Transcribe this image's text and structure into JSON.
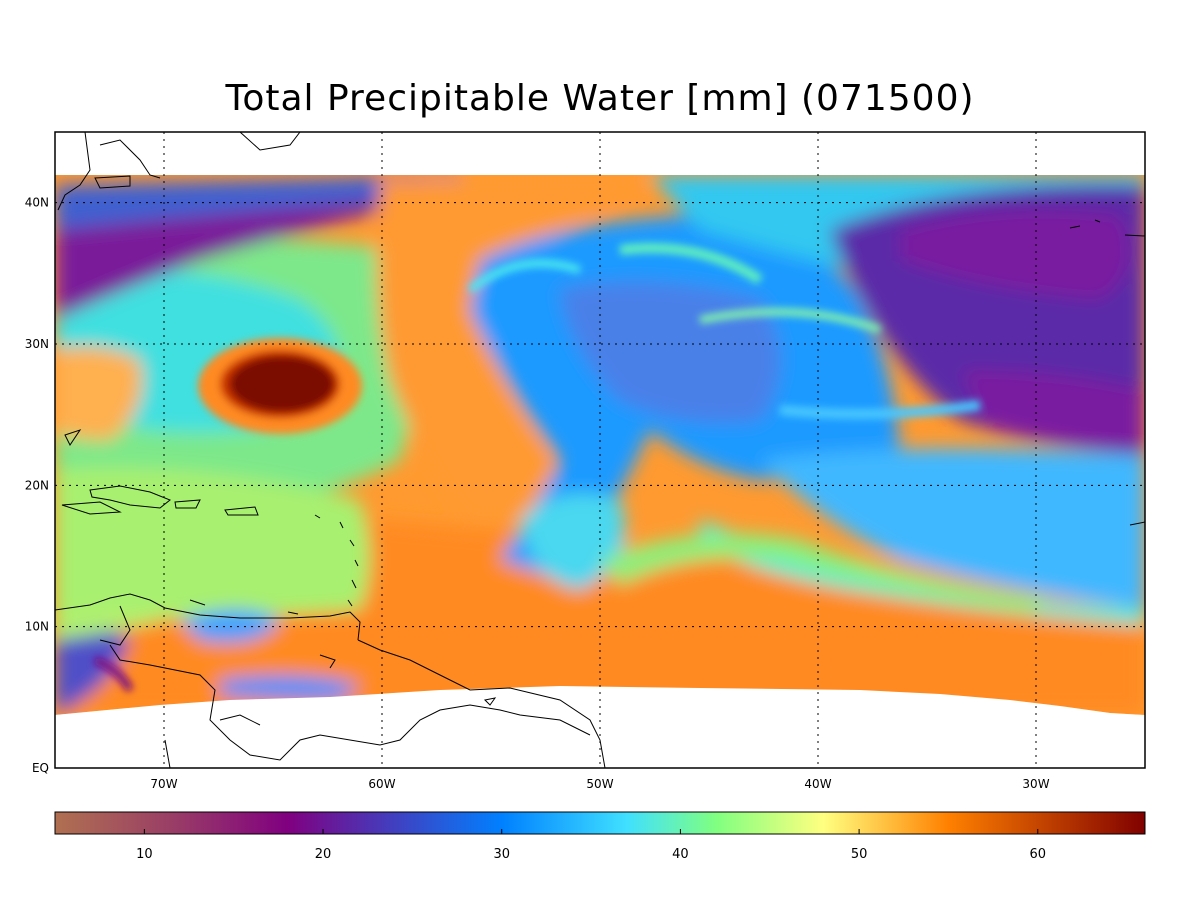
{
  "title": "Total Precipitable Water [mm]  (071500)",
  "map": {
    "lat_ticks": [
      {
        "value": 40,
        "label": "40N"
      },
      {
        "value": 30,
        "label": "30N"
      },
      {
        "value": 20,
        "label": "20N"
      },
      {
        "value": 10,
        "label": "10N"
      },
      {
        "value": 0,
        "label": "EQ"
      }
    ],
    "lon_ticks": [
      {
        "value": -70,
        "label": "70W"
      },
      {
        "value": -60,
        "label": "60W"
      },
      {
        "value": -50,
        "label": "50W"
      },
      {
        "value": -40,
        "label": "40W"
      },
      {
        "value": -30,
        "label": "30W"
      }
    ],
    "lon_range": [
      -75,
      -25
    ],
    "lat_range": [
      0,
      45
    ],
    "grid": "dotted"
  },
  "colorbar": {
    "range": [
      5,
      66
    ],
    "ticks": [
      10,
      20,
      30,
      40,
      50,
      60
    ],
    "stops": [
      {
        "v": 5,
        "c": "#b07050"
      },
      {
        "v": 12,
        "c": "#983a68"
      },
      {
        "v": 18,
        "c": "#800080"
      },
      {
        "v": 24,
        "c": "#4040c0"
      },
      {
        "v": 30,
        "c": "#0080ff"
      },
      {
        "v": 37,
        "c": "#40e0ff"
      },
      {
        "v": 42,
        "c": "#80ff80"
      },
      {
        "v": 48,
        "c": "#ffff80"
      },
      {
        "v": 55,
        "c": "#ff8000"
      },
      {
        "v": 66,
        "c": "#800000"
      }
    ]
  }
}
